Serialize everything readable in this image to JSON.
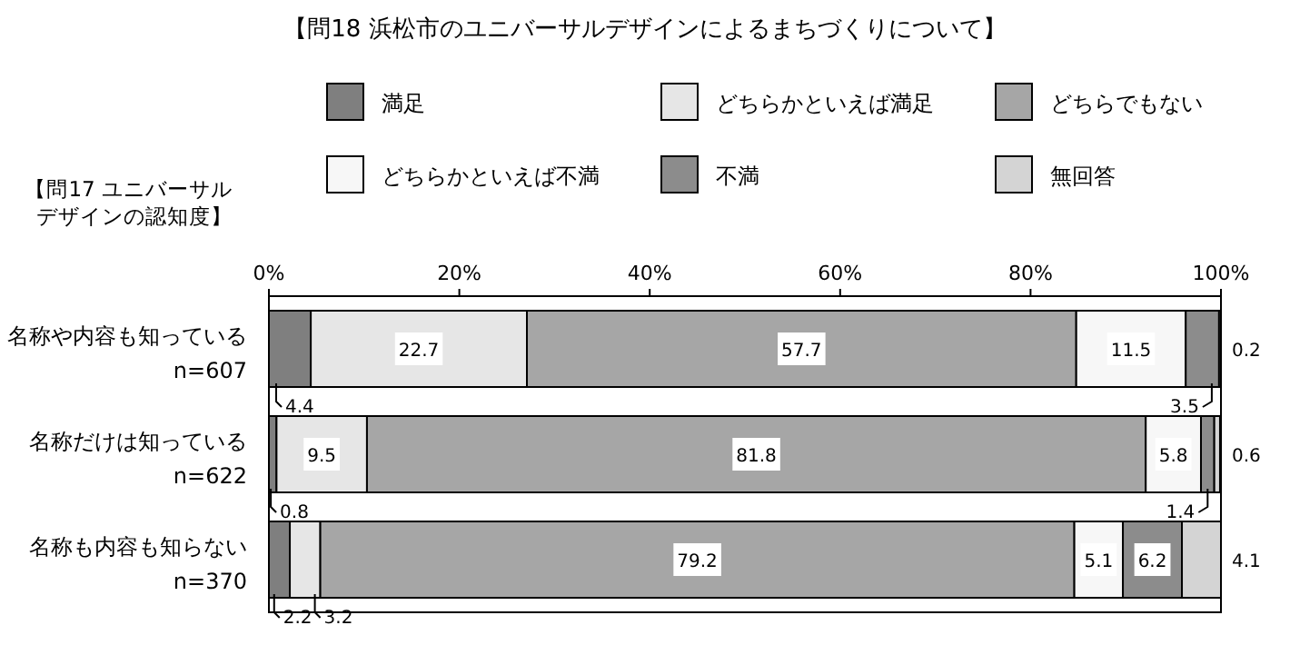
{
  "chart_data": {
    "type": "bar",
    "orientation": "horizontal",
    "stacked": true,
    "title": "【問18 浜松市のユニバーサルデザインによるまちづくりについて】",
    "ylabel": "【問17 ユニバーサルデザインの認知度】",
    "categories": [
      "名称や内容も知っている\nn=607",
      "名称だけは知っている\nn=622",
      "名称も内容も知らない\nn=370"
    ],
    "series": [
      {
        "name": "満足",
        "color": "#7f7f7f",
        "values": [
          4.4,
          0.8,
          2.2
        ]
      },
      {
        "name": "どちらかといえば満足",
        "color": "#e6e6e6",
        "values": [
          22.7,
          9.5,
          3.2
        ]
      },
      {
        "name": "どちらでもない",
        "color": "#a6a6a6",
        "values": [
          57.7,
          81.8,
          79.2
        ]
      },
      {
        "name": "どちらかといえば不満",
        "color": "#f7f7f7",
        "values": [
          11.5,
          5.8,
          5.1
        ]
      },
      {
        "name": "不満",
        "color": "#8c8c8c",
        "values": [
          3.5,
          1.4,
          6.2
        ]
      },
      {
        "name": "無回答",
        "color": "#d4d4d4",
        "values": [
          0.2,
          0.6,
          4.1
        ]
      }
    ],
    "xlim": [
      0,
      100
    ],
    "xticks": [
      {
        "value": 0,
        "label": "0%"
      },
      {
        "value": 20,
        "label": "20%"
      },
      {
        "value": 40,
        "label": "40%"
      },
      {
        "value": 60,
        "label": "60%"
      },
      {
        "value": 80,
        "label": "80%"
      },
      {
        "value": 100,
        "label": "100%"
      }
    ],
    "data_labels": true,
    "legend": "top"
  }
}
